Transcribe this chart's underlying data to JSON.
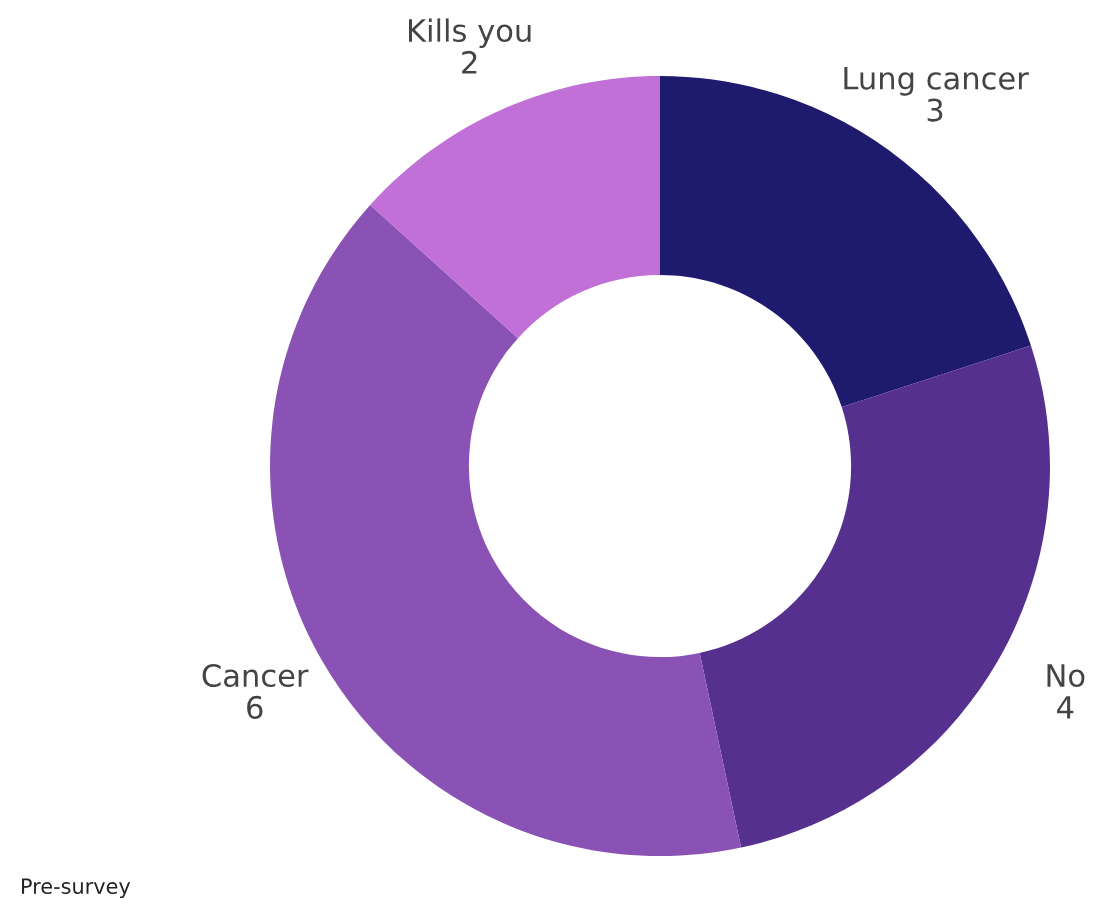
{
  "chart_data": {
    "type": "donut",
    "categories": [
      "Lung cancer",
      "No",
      "Cancer",
      "Kills you"
    ],
    "values": [
      3,
      4,
      6,
      2
    ],
    "colors": [
      "#1e1a6e",
      "#56308f",
      "#8a52b5",
      "#c070d6"
    ],
    "data_labels": true,
    "legend": false,
    "annotations": [
      "Pre-survey"
    ]
  }
}
